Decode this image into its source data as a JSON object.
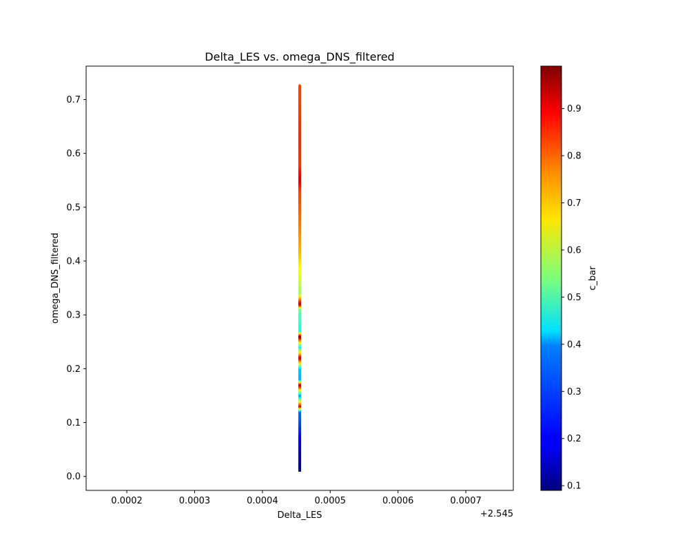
{
  "chart_data": {
    "type": "scatter",
    "title": "Delta_LES vs. omega_DNS_filtered",
    "xlabel": "Delta_LES",
    "ylabel": "omega_DNS_filtered",
    "x_offset_label": "+2.545",
    "x_ticks": [
      "0.0002",
      "0.0003",
      "0.0004",
      "0.0005",
      "0.0006",
      "0.0007"
    ],
    "y_ticks": [
      "0.0",
      "0.1",
      "0.2",
      "0.3",
      "0.4",
      "0.5",
      "0.6",
      "0.7"
    ],
    "xlim": [
      2.54514,
      2.54577
    ],
    "ylim": [
      -0.026,
      0.762
    ],
    "grid": false,
    "colorbar": {
      "label": "c_bar",
      "colormap": "jet",
      "range": [
        0.09,
        0.99
      ],
      "ticks": [
        "0.1",
        "0.2",
        "0.3",
        "0.4",
        "0.5",
        "0.6",
        "0.7",
        "0.8",
        "0.9"
      ]
    },
    "series": [
      {
        "x_value": 2.545455,
        "y_range": [
          0.01,
          0.727
        ],
        "points": [
          {
            "y": 0.01,
            "c": 0.09
          },
          {
            "y": 0.02,
            "c": 0.12
          },
          {
            "y": 0.04,
            "c": 0.15
          },
          {
            "y": 0.06,
            "c": 0.18
          },
          {
            "y": 0.08,
            "c": 0.22
          },
          {
            "y": 0.1,
            "c": 0.27
          },
          {
            "y": 0.12,
            "c": 0.3
          },
          {
            "y": 0.13,
            "c": 0.9
          },
          {
            "y": 0.15,
            "c": 0.33
          },
          {
            "y": 0.17,
            "c": 0.95
          },
          {
            "y": 0.18,
            "c": 0.36
          },
          {
            "y": 0.2,
            "c": 0.38
          },
          {
            "y": 0.22,
            "c": 0.92
          },
          {
            "y": 0.24,
            "c": 0.42
          },
          {
            "y": 0.26,
            "c": 0.97
          },
          {
            "y": 0.27,
            "c": 0.45
          },
          {
            "y": 0.29,
            "c": 0.48
          },
          {
            "y": 0.31,
            "c": 0.52
          },
          {
            "y": 0.32,
            "c": 0.93
          },
          {
            "y": 0.34,
            "c": 0.56
          },
          {
            "y": 0.36,
            "c": 0.6
          },
          {
            "y": 0.38,
            "c": 0.64
          },
          {
            "y": 0.4,
            "c": 0.68
          },
          {
            "y": 0.42,
            "c": 0.72
          },
          {
            "y": 0.45,
            "c": 0.75
          },
          {
            "y": 0.48,
            "c": 0.78
          },
          {
            "y": 0.5,
            "c": 0.8
          },
          {
            "y": 0.53,
            "c": 0.82
          },
          {
            "y": 0.55,
            "c": 0.9
          },
          {
            "y": 0.58,
            "c": 0.83
          },
          {
            "y": 0.61,
            "c": 0.84
          },
          {
            "y": 0.64,
            "c": 0.84
          },
          {
            "y": 0.67,
            "c": 0.83
          },
          {
            "y": 0.7,
            "c": 0.82
          },
          {
            "y": 0.727,
            "c": 0.82
          }
        ]
      }
    ]
  }
}
